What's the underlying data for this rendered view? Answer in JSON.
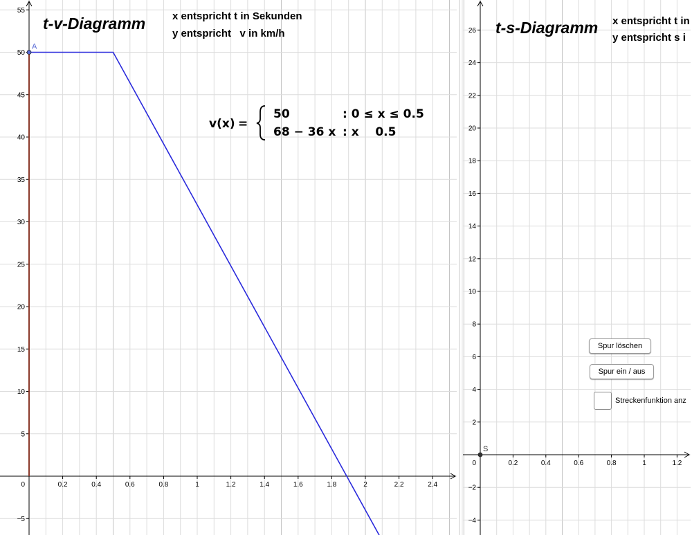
{
  "chart_data": [
    {
      "type": "line",
      "title": "t-v-Diagramm",
      "info_lines": [
        "x entspricht t in Sekunden",
        "y entspricht   v in km/h"
      ],
      "formula": {
        "lhs": "v(x)",
        "eq": "=",
        "cases": [
          {
            "expr": "50",
            "cond": ": 0 ≤ x ≤ 0.5"
          },
          {
            "expr": "68 − 36 x",
            "cond": ": x    0.5"
          }
        ]
      },
      "xlim": [
        0,
        2.5
      ],
      "ylim": [
        -6,
        55
      ],
      "x_ticks": [
        {
          "v": 0.2,
          "label": "0.2"
        },
        {
          "v": 0.4,
          "label": "0.4"
        },
        {
          "v": 0.6,
          "label": "0.6"
        },
        {
          "v": 0.8,
          "label": "0.8"
        },
        {
          "v": 1,
          "label": "1"
        },
        {
          "v": 1.2,
          "label": "1.2"
        },
        {
          "v": 1.4,
          "label": "1.4"
        },
        {
          "v": 1.6,
          "label": "1.6"
        },
        {
          "v": 1.8,
          "label": "1.8"
        },
        {
          "v": 2,
          "label": "2"
        },
        {
          "v": 2.2,
          "label": "2.2"
        },
        {
          "v": 2.4,
          "label": "2.4"
        }
      ],
      "y_ticks": [
        {
          "v": -5,
          "label": "−5"
        },
        {
          "v": 5,
          "label": "5"
        },
        {
          "v": 10,
          "label": "10"
        },
        {
          "v": 15,
          "label": "15"
        },
        {
          "v": 20,
          "label": "20"
        },
        {
          "v": 25,
          "label": "25"
        },
        {
          "v": 30,
          "label": "30"
        },
        {
          "v": 35,
          "label": "35"
        },
        {
          "v": 40,
          "label": "40"
        },
        {
          "v": 45,
          "label": "45"
        },
        {
          "v": 50,
          "label": "50"
        },
        {
          "v": 55,
          "label": "55"
        }
      ],
      "origin_label": "0",
      "grid": true,
      "series": [
        {
          "name": "v(x)",
          "color": "#2b2bdc",
          "points": [
            [
              0,
              50
            ],
            [
              0.5,
              50
            ],
            [
              2.1,
              -7.6
            ]
          ]
        },
        {
          "color": "#8b3a2a",
          "points": [
            [
              0,
              0
            ],
            [
              0,
              50
            ]
          ]
        }
      ],
      "point": {
        "label": "A",
        "x": 0,
        "y": 50,
        "color": "#5a6cd6"
      }
    },
    {
      "type": "line",
      "title": "t-s-Diagramm",
      "info_lines": [
        "x entspricht t in",
        "y entspricht s i"
      ],
      "xlim": [
        -0.1,
        1.3
      ],
      "ylim": [
        -4.5,
        27.5
      ],
      "x_ticks": [
        {
          "v": 0.2,
          "label": "0.2"
        },
        {
          "v": 0.4,
          "label": "0.4"
        },
        {
          "v": 0.6,
          "label": "0.6"
        },
        {
          "v": 0.8,
          "label": "0.8"
        },
        {
          "v": 1,
          "label": "1"
        },
        {
          "v": 1.2,
          "label": "1.2"
        }
      ],
      "y_ticks": [
        {
          "v": -4,
          "label": "−4"
        },
        {
          "v": -2,
          "label": "−2"
        },
        {
          "v": 2,
          "label": "2"
        },
        {
          "v": 4,
          "label": "4"
        },
        {
          "v": 6,
          "label": "6"
        },
        {
          "v": 8,
          "label": "8"
        },
        {
          "v": 10,
          "label": "10"
        },
        {
          "v": 12,
          "label": "12"
        },
        {
          "v": 14,
          "label": "14"
        },
        {
          "v": 16,
          "label": "16"
        },
        {
          "v": 18,
          "label": "18"
        },
        {
          "v": 20,
          "label": "20"
        },
        {
          "v": 22,
          "label": "22"
        },
        {
          "v": 24,
          "label": "24"
        },
        {
          "v": 26,
          "label": "26"
        }
      ],
      "origin_label": "0",
      "grid": true,
      "point": {
        "label": "S",
        "x": 0,
        "y": 0,
        "color": "#333333"
      }
    }
  ],
  "controls": {
    "clear_trace_label": "Spur löschen",
    "toggle_trace_label": "Spur ein / aus",
    "checkbox_label": "Streckenfunktion anz"
  }
}
